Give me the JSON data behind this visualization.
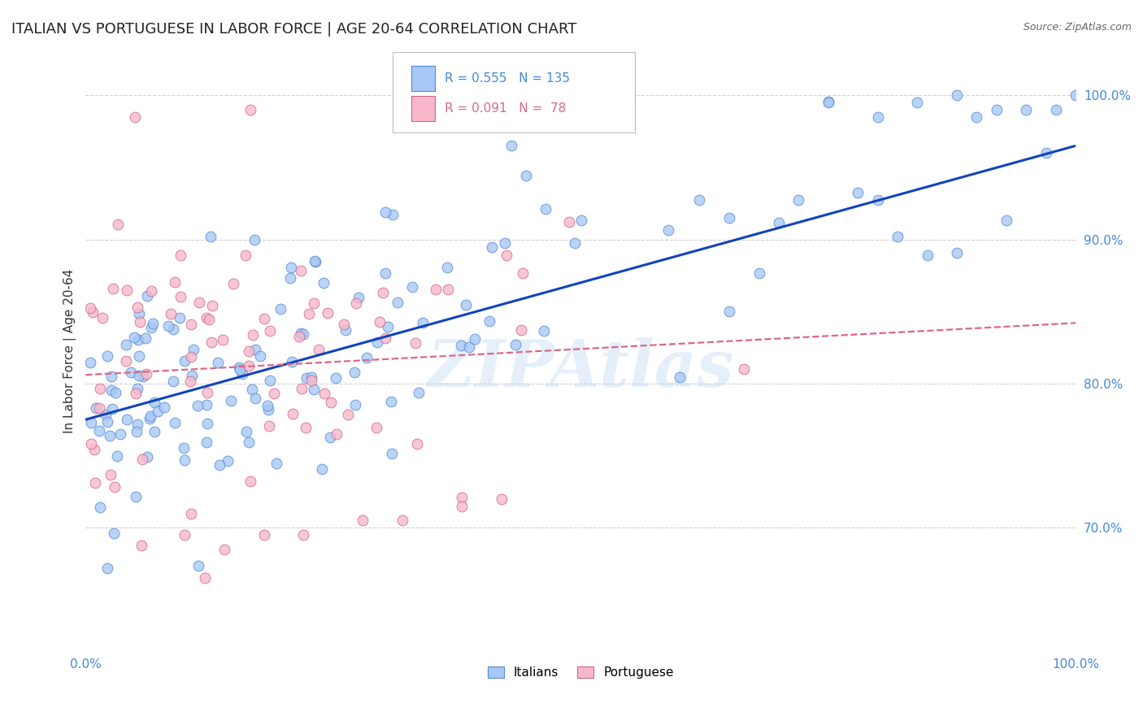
{
  "title": "ITALIAN VS PORTUGUESE IN LABOR FORCE | AGE 20-64 CORRELATION CHART",
  "source": "Source: ZipAtlas.com",
  "ylabel": "In Labor Force | Age 20-64",
  "italian_color": "#a8c8f8",
  "italian_edge_color": "#5588cc",
  "portuguese_color": "#f8b8cc",
  "portuguese_edge_color": "#cc6688",
  "italian_line_color": "#1144bb",
  "portuguese_line_color": "#dd6688",
  "italian_R": 0.555,
  "italian_N": 135,
  "portuguese_R": 0.091,
  "portuguese_N": 78,
  "watermark": "ZIPAtlas",
  "background_color": "#ffffff",
  "xlim": [
    0.0,
    1.0
  ],
  "ylim": [
    0.615,
    1.03
  ],
  "italian_line_start_y": 0.775,
  "italian_line_end_y": 0.965,
  "portuguese_line_start_y": 0.806,
  "portuguese_line_end_y": 0.842,
  "tick_color": "#4488dd",
  "grid_color": "#cccccc",
  "title_color": "#222222",
  "source_color": "#666666"
}
